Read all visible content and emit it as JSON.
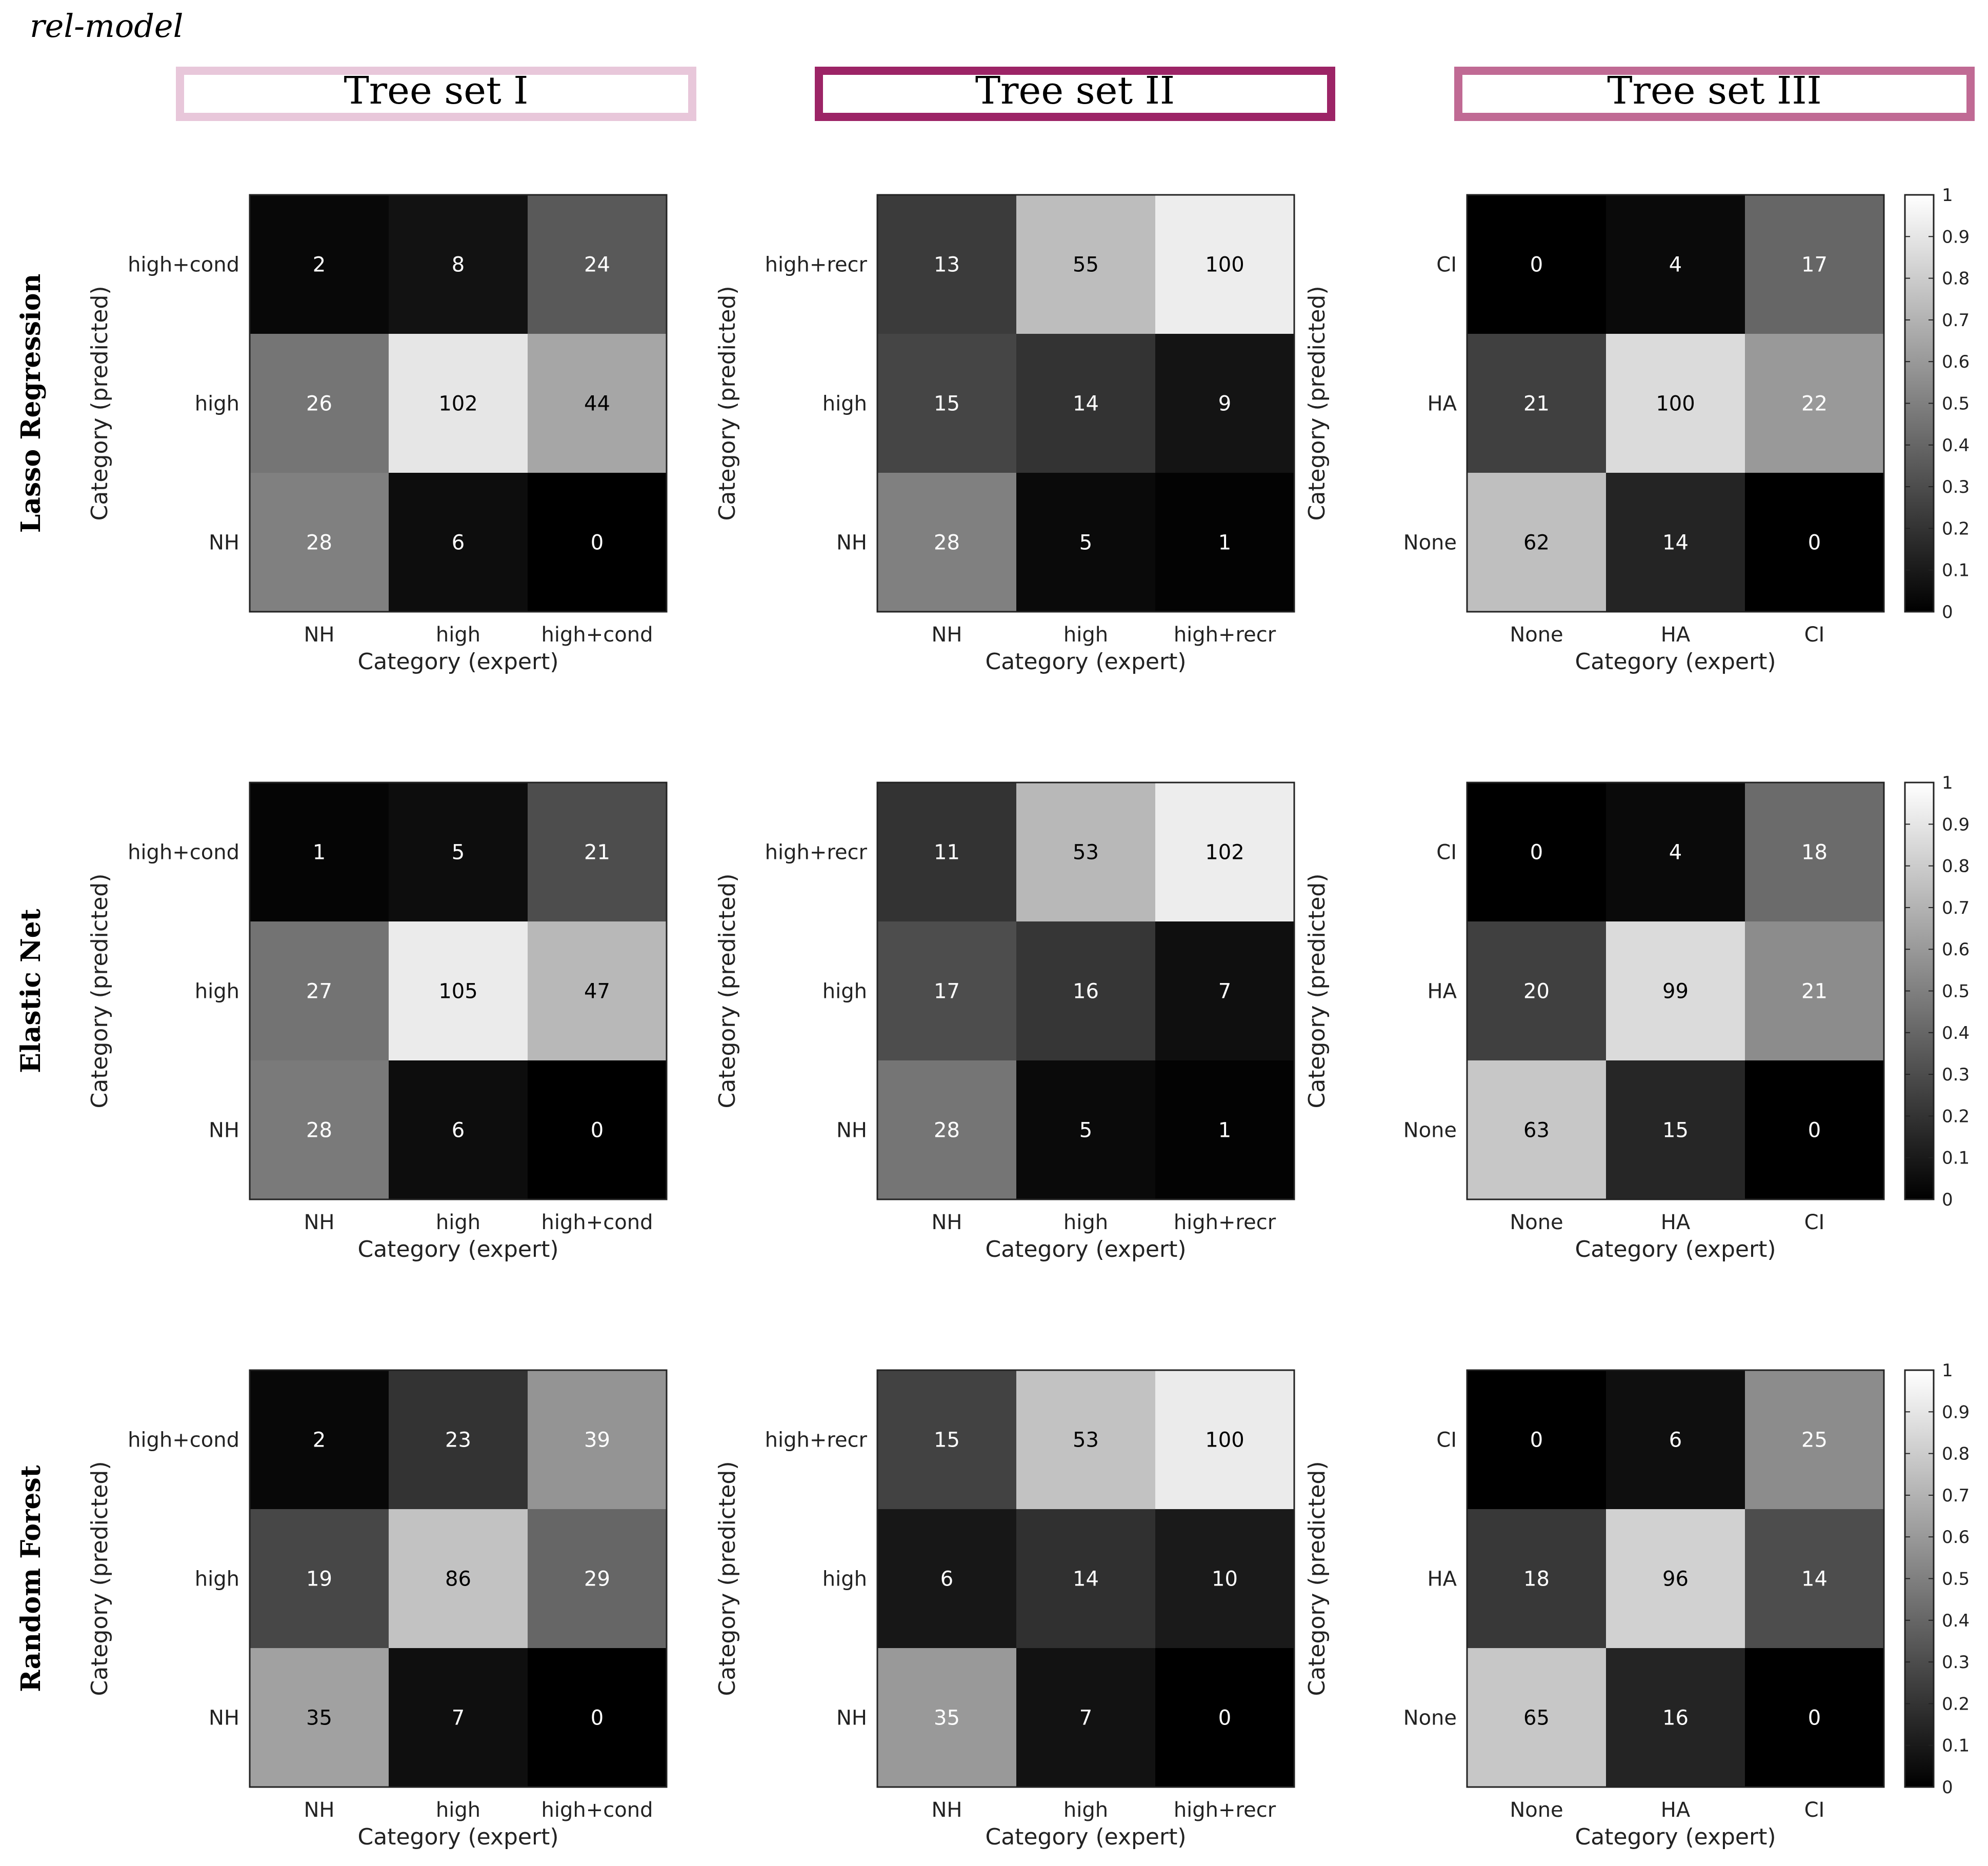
{
  "figure_title": "rel-model",
  "colors": {
    "set1": "#e8c7da",
    "set2": "#9c2466",
    "set3": "#c06a94",
    "cell_text_dark": "#000000",
    "cell_text_light": "#ffffff"
  },
  "column_titles": [
    "Tree set I",
    "Tree set II",
    "Tree set III"
  ],
  "row_titles": [
    "Lasso Regression",
    "Elastic Net",
    "Random Forest"
  ],
  "colorbar": {
    "ticks": [
      "0",
      "0.1",
      "0.2",
      "0.3",
      "0.4",
      "0.5",
      "0.6",
      "0.7",
      "0.8",
      "0.9",
      "1"
    ]
  },
  "chart_data": [
    {
      "type": "heatmap",
      "model": "Lasso Regression",
      "tree_set": "Tree set I",
      "xlabel": "Category (expert)",
      "ylabel": "Category (predicted)",
      "x_categories": [
        "NH",
        "high",
        "high+cond"
      ],
      "y_categories": [
        "high+cond",
        "high",
        "NH"
      ],
      "values": [
        [
          2,
          8,
          24
        ],
        [
          26,
          102,
          44
        ],
        [
          28,
          6,
          0
        ]
      ],
      "intensity": [
        [
          0.03,
          0.07,
          0.35
        ],
        [
          0.46,
          0.9,
          0.65
        ],
        [
          0.5,
          0.05,
          0.0
        ]
      ]
    },
    {
      "type": "heatmap",
      "model": "Lasso Regression",
      "tree_set": "Tree set II",
      "xlabel": "Category (expert)",
      "ylabel": "Category (predicted)",
      "x_categories": [
        "NH",
        "high",
        "high+recr"
      ],
      "y_categories": [
        "high+recr",
        "high",
        "NH"
      ],
      "values": [
        [
          13,
          55,
          100
        ],
        [
          15,
          14,
          9
        ],
        [
          28,
          5,
          1
        ]
      ],
      "intensity": [
        [
          0.23,
          0.74,
          0.93
        ],
        [
          0.27,
          0.2,
          0.08
        ],
        [
          0.5,
          0.04,
          0.01
        ]
      ]
    },
    {
      "type": "heatmap",
      "model": "Lasso Regression",
      "tree_set": "Tree set III",
      "xlabel": "Category (expert)",
      "ylabel": "Category (predicted)",
      "x_categories": [
        "None",
        "HA",
        "CI"
      ],
      "y_categories": [
        "CI",
        "HA",
        "None"
      ],
      "values": [
        [
          0,
          4,
          17
        ],
        [
          21,
          100,
          22
        ],
        [
          62,
          14,
          0
        ]
      ],
      "intensity": [
        [
          0.0,
          0.04,
          0.4
        ],
        [
          0.25,
          0.86,
          0.6
        ],
        [
          0.75,
          0.14,
          0.0
        ]
      ]
    },
    {
      "type": "heatmap",
      "model": "Elastic Net",
      "tree_set": "Tree set I",
      "xlabel": "Category (expert)",
      "ylabel": "Category (predicted)",
      "x_categories": [
        "NH",
        "high",
        "high+cond"
      ],
      "y_categories": [
        "high+cond",
        "high",
        "NH"
      ],
      "values": [
        [
          1,
          5,
          21
        ],
        [
          27,
          105,
          47
        ],
        [
          28,
          6,
          0
        ]
      ],
      "intensity": [
        [
          0.02,
          0.05,
          0.3
        ],
        [
          0.45,
          0.92,
          0.72
        ],
        [
          0.48,
          0.05,
          0.0
        ]
      ]
    },
    {
      "type": "heatmap",
      "model": "Elastic Net",
      "tree_set": "Tree set II",
      "xlabel": "Category (expert)",
      "ylabel": "Category (predicted)",
      "x_categories": [
        "NH",
        "high",
        "high+recr"
      ],
      "y_categories": [
        "high+recr",
        "high",
        "NH"
      ],
      "values": [
        [
          11,
          53,
          102
        ],
        [
          17,
          16,
          7
        ],
        [
          28,
          5,
          1
        ]
      ],
      "intensity": [
        [
          0.2,
          0.72,
          0.93
        ],
        [
          0.3,
          0.21,
          0.06
        ],
        [
          0.46,
          0.04,
          0.01
        ]
      ]
    },
    {
      "type": "heatmap",
      "model": "Elastic Net",
      "tree_set": "Tree set III",
      "xlabel": "Category (expert)",
      "ylabel": "Category (predicted)",
      "x_categories": [
        "None",
        "HA",
        "CI"
      ],
      "y_categories": [
        "CI",
        "HA",
        "None"
      ],
      "values": [
        [
          0,
          4,
          18
        ],
        [
          20,
          99,
          21
        ],
        [
          63,
          15,
          0
        ]
      ],
      "intensity": [
        [
          0.0,
          0.04,
          0.42
        ],
        [
          0.25,
          0.86,
          0.55
        ],
        [
          0.78,
          0.15,
          0.0
        ]
      ]
    },
    {
      "type": "heatmap",
      "model": "Random Forest",
      "tree_set": "Tree set I",
      "xlabel": "Category (expert)",
      "ylabel": "Category (predicted)",
      "x_categories": [
        "NH",
        "high",
        "high+cond"
      ],
      "y_categories": [
        "high+cond",
        "high",
        "NH"
      ],
      "values": [
        [
          2,
          23,
          39
        ],
        [
          19,
          86,
          29
        ],
        [
          35,
          7,
          0
        ]
      ],
      "intensity": [
        [
          0.03,
          0.2,
          0.58
        ],
        [
          0.28,
          0.76,
          0.4
        ],
        [
          0.63,
          0.06,
          0.0
        ]
      ]
    },
    {
      "type": "heatmap",
      "model": "Random Forest",
      "tree_set": "Tree set II",
      "xlabel": "Category (expert)",
      "ylabel": "Category (predicted)",
      "x_categories": [
        "NH",
        "high",
        "high+recr"
      ],
      "y_categories": [
        "high+recr",
        "high",
        "NH"
      ],
      "values": [
        [
          15,
          53,
          100
        ],
        [
          6,
          14,
          10
        ],
        [
          35,
          7,
          0
        ]
      ],
      "intensity": [
        [
          0.26,
          0.76,
          0.92
        ],
        [
          0.09,
          0.19,
          0.1
        ],
        [
          0.6,
          0.07,
          0.0
        ]
      ]
    },
    {
      "type": "heatmap",
      "model": "Random Forest",
      "tree_set": "Tree set III",
      "xlabel": "Category (expert)",
      "ylabel": "Category (predicted)",
      "x_categories": [
        "None",
        "HA",
        "CI"
      ],
      "y_categories": [
        "CI",
        "HA",
        "None"
      ],
      "values": [
        [
          0,
          6,
          25
        ],
        [
          18,
          96,
          14
        ],
        [
          65,
          16,
          0
        ]
      ],
      "intensity": [
        [
          0.0,
          0.06,
          0.55
        ],
        [
          0.22,
          0.82,
          0.3
        ],
        [
          0.78,
          0.14,
          0.0
        ]
      ]
    }
  ]
}
